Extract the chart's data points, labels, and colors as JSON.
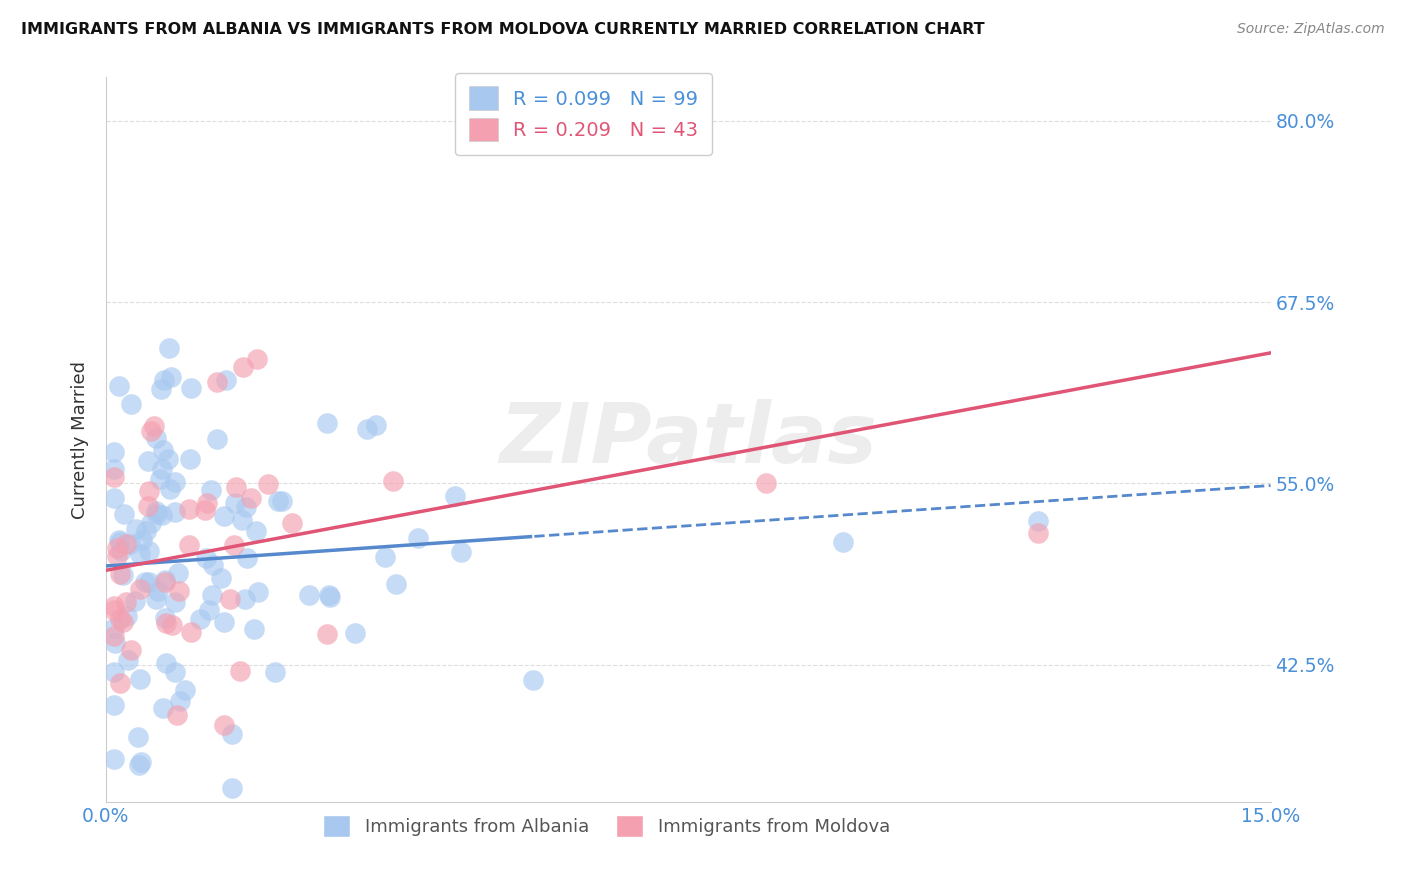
{
  "title": "IMMIGRANTS FROM ALBANIA VS IMMIGRANTS FROM MOLDOVA CURRENTLY MARRIED CORRELATION CHART",
  "source": "Source: ZipAtlas.com",
  "ylabel": "Currently Married",
  "xlim": [
    0.0,
    0.15
  ],
  "ylim": [
    0.33,
    0.83
  ],
  "yticks": [
    0.425,
    0.55,
    0.675,
    0.8
  ],
  "ytick_labels": [
    "42.5%",
    "55.0%",
    "67.5%",
    "80.0%"
  ],
  "albania_R": 0.099,
  "albania_N": 99,
  "moldova_R": 0.209,
  "moldova_N": 43,
  "albania_color": "#a8c8f0",
  "moldova_color": "#f4a0b0",
  "albania_line_color": "#5588cc",
  "moldova_line_color": "#e05575",
  "axis_label_color": "#4a90d9",
  "grid_color": "#dddddd",
  "background_color": "#ffffff",
  "watermark": "ZIPatlas",
  "legend1_label1": "R = 0.099   N = 99",
  "legend1_label2": "R = 0.209   N = 43",
  "legend2_label1": "Immigrants from Albania",
  "legend2_label2": "Immigrants from Moldova",
  "albania_intercept": 0.493,
  "albania_slope": 0.37,
  "moldova_intercept": 0.49,
  "moldova_slope": 1.0
}
